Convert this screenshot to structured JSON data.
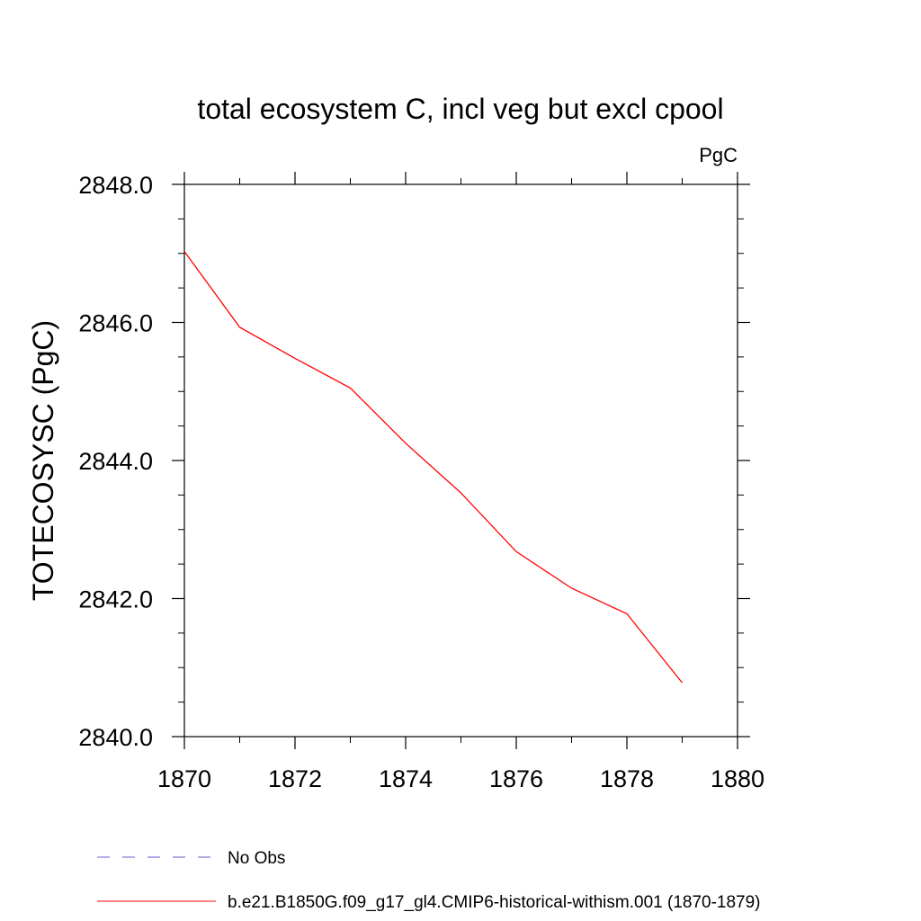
{
  "chart_data": {
    "type": "line",
    "title": "total ecosystem C, incl veg but excl cpool",
    "units_label": "PgC",
    "ylabel": "TOTECOSYSC  (PgC)",
    "xlabel": "",
    "xlim": [
      1870,
      1880
    ],
    "ylim": [
      2840,
      2848
    ],
    "x_ticks": [
      1870,
      1872,
      1874,
      1876,
      1878,
      1880
    ],
    "x_tick_labels": [
      "1870",
      "1872",
      "1874",
      "1876",
      "1878",
      "1880"
    ],
    "x_minor_step": 1,
    "y_ticks": [
      2840,
      2842,
      2844,
      2846,
      2848
    ],
    "y_tick_labels": [
      "2840.0",
      "2842.0",
      "2844.0",
      "2846.0",
      "2848.0"
    ],
    "y_minor_step": 0.5,
    "grid": false,
    "legend_position": "bottom",
    "series": [
      {
        "name": "b.e21.B1850G.f09_g17_gl4.CMIP6-historical-withism.001 (1870-1879)",
        "color": "#ff0000",
        "dash": "solid",
        "x": [
          1870,
          1871,
          1872,
          1873,
          1874,
          1875,
          1876,
          1877,
          1878,
          1879
        ],
        "y": [
          2847.03,
          2845.93,
          2845.48,
          2845.05,
          2844.25,
          2843.53,
          2842.68,
          2842.15,
          2841.78,
          2840.78
        ]
      }
    ],
    "legend": [
      {
        "label": "No Obs",
        "color": "#6a5acd",
        "dash": "dashed"
      },
      {
        "label": "b.e21.B1850G.f09_g17_gl4.CMIP6-historical-withism.001 (1870-1879)",
        "color": "#ff0000",
        "dash": "solid"
      }
    ]
  }
}
